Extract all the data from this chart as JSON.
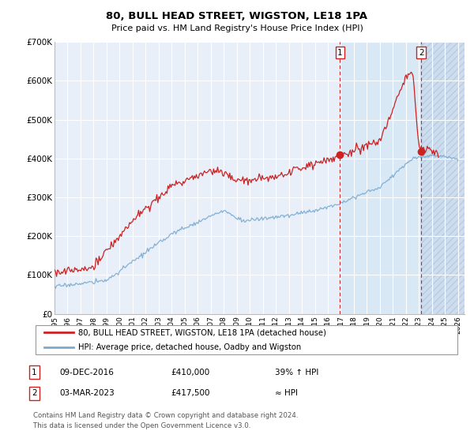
{
  "title": "80, BULL HEAD STREET, WIGSTON, LE18 1PA",
  "subtitle": "Price paid vs. HM Land Registry's House Price Index (HPI)",
  "legend_line1": "80, BULL HEAD STREET, WIGSTON, LE18 1PA (detached house)",
  "legend_line2": "HPI: Average price, detached house, Oadby and Wigston",
  "annotation1_date": "09-DEC-2016",
  "annotation1_price": "£410,000",
  "annotation1_hpi": "39% ↑ HPI",
  "annotation2_date": "03-MAR-2023",
  "annotation2_price": "£417,500",
  "annotation2_hpi": "≈ HPI",
  "footnote": "Contains HM Land Registry data © Crown copyright and database right 2024.\nThis data is licensed under the Open Government Licence v3.0.",
  "sale1_x": 2016.94,
  "sale1_y": 410000,
  "sale2_x": 2023.17,
  "sale2_y": 417500,
  "hpi_color": "#7aaad0",
  "price_color": "#cc2222",
  "background_normal": "#e8eff8",
  "background_between": "#d8e8f5",
  "background_after": "#ccddf0",
  "grid_color": "#d0d8e8",
  "ylim": [
    0,
    700000
  ],
  "xlim_start": 1995.0,
  "xlim_end": 2026.5,
  "ytick_vals": [
    0,
    100000,
    200000,
    300000,
    400000,
    500000,
    600000,
    700000
  ],
  "ytick_labels": [
    "£0",
    "£100K",
    "£200K",
    "£300K",
    "£400K",
    "£500K",
    "£600K",
    "£700K"
  ],
  "xticks": [
    1995,
    1996,
    1997,
    1998,
    1999,
    2000,
    2001,
    2002,
    2003,
    2004,
    2005,
    2006,
    2007,
    2008,
    2009,
    2010,
    2011,
    2012,
    2013,
    2014,
    2015,
    2016,
    2017,
    2018,
    2019,
    2020,
    2021,
    2022,
    2023,
    2024,
    2025,
    2026
  ]
}
